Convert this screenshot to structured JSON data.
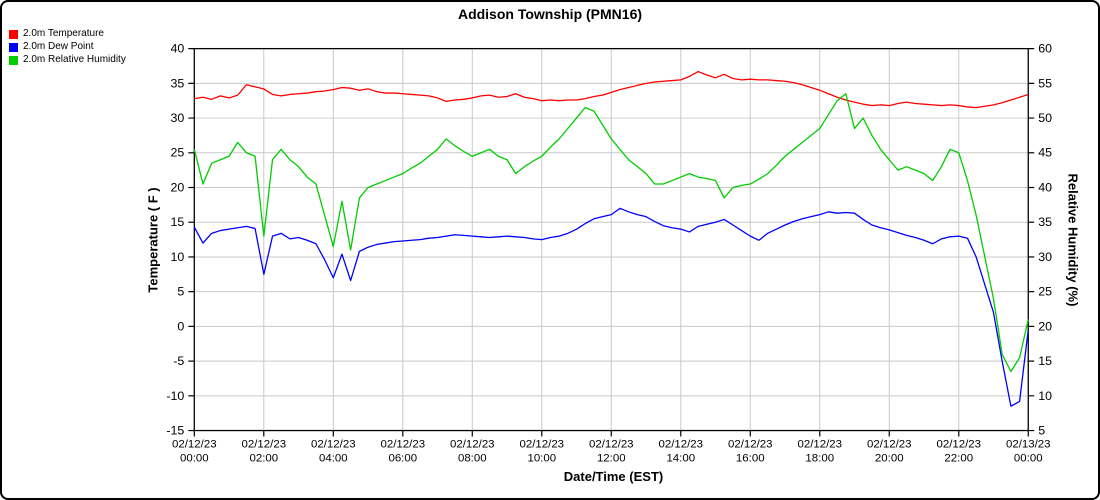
{
  "title": "Addison Township (PMN16)",
  "colors": {
    "grid": "#c9c9c9",
    "axis": "#000000",
    "background": "#ffffff"
  },
  "legend": {
    "items": [
      {
        "label": "2.0m Temperature",
        "color": "#ff0000"
      },
      {
        "label": "2.0m Dew Point",
        "color": "#0000ff"
      },
      {
        "label": "2.0m Relative Humidity",
        "color": "#00cc00"
      }
    ]
  },
  "axes": {
    "left": {
      "label": "Temperature ( F )",
      "ticks": [
        "40",
        "35",
        "30",
        "25",
        "20",
        "15",
        "10",
        "5",
        "0",
        "-5",
        "-10",
        "-15"
      ]
    },
    "right": {
      "label": "Relative Humidity (%)",
      "ticks": [
        "60",
        "55",
        "50",
        "45",
        "40",
        "35",
        "30",
        "25",
        "20",
        "15",
        "10",
        "5"
      ]
    },
    "x": {
      "label": "Date/Time (EST)",
      "ticks": [
        {
          "date": "02/12/23",
          "time": "00:00"
        },
        {
          "date": "02/12/23",
          "time": "02:00"
        },
        {
          "date": "02/12/23",
          "time": "04:00"
        },
        {
          "date": "02/12/23",
          "time": "06:00"
        },
        {
          "date": "02/12/23",
          "time": "08:00"
        },
        {
          "date": "02/12/23",
          "time": "10:00"
        },
        {
          "date": "02/12/23",
          "time": "12:00"
        },
        {
          "date": "02/12/23",
          "time": "14:00"
        },
        {
          "date": "02/12/23",
          "time": "16:00"
        },
        {
          "date": "02/12/23",
          "time": "18:00"
        },
        {
          "date": "02/12/23",
          "time": "20:00"
        },
        {
          "date": "02/12/23",
          "time": "22:00"
        },
        {
          "date": "02/13/23",
          "time": "00:00"
        }
      ]
    }
  },
  "chart_data": {
    "type": "line",
    "title": "Addison Township (PMN16)",
    "xlabel": "Date/Time (EST)",
    "ylabel_left": "Temperature ( F )",
    "ylabel_right": "Relative Humidity (%)",
    "ylim_left": [
      -15,
      40
    ],
    "ylim_right": [
      5,
      60
    ],
    "grid": true,
    "legend_position": "top-left",
    "x": {
      "start_hour": 0,
      "step_hours": 0.25,
      "count": 97,
      "start_label": "02/12/23 00:00 EST",
      "end_label": "02/13/23 00:00 EST"
    },
    "series": [
      {
        "key": "temperature",
        "name": "2.0m Temperature",
        "axis": "left",
        "unit": "F",
        "color": "#ff0000",
        "values": [
          32.8,
          33.0,
          32.7,
          33.2,
          32.9,
          33.3,
          34.8,
          34.5,
          34.2,
          33.4,
          33.2,
          33.4,
          33.5,
          33.6,
          33.8,
          33.9,
          34.1,
          34.4,
          34.3,
          34.0,
          34.2,
          33.8,
          33.6,
          33.6,
          33.5,
          33.4,
          33.3,
          33.2,
          32.9,
          32.4,
          32.6,
          32.7,
          32.9,
          33.2,
          33.3,
          33.0,
          33.1,
          33.5,
          33.0,
          32.8,
          32.5,
          32.6,
          32.5,
          32.6,
          32.6,
          32.8,
          33.1,
          33.3,
          33.7,
          34.1,
          34.4,
          34.7,
          35.0,
          35.2,
          35.3,
          35.4,
          35.5,
          36.0,
          36.7,
          36.2,
          35.8,
          36.3,
          35.7,
          35.5,
          35.6,
          35.5,
          35.5,
          35.4,
          35.3,
          35.1,
          34.8,
          34.4,
          34.0,
          33.5,
          33.0,
          32.6,
          32.3,
          32.0,
          31.8,
          31.9,
          31.8,
          32.1,
          32.3,
          32.1,
          32.0,
          31.9,
          31.8,
          31.9,
          31.8,
          31.6,
          31.5,
          31.7,
          31.9,
          32.2,
          32.6,
          33.0,
          33.4
        ]
      },
      {
        "key": "dew-point",
        "name": "2.0m Dew Point",
        "axis": "left",
        "unit": "F",
        "color": "#0000ff",
        "values": [
          14.3,
          12.0,
          13.4,
          13.8,
          14.0,
          14.2,
          14.4,
          14.1,
          7.5,
          13.0,
          13.4,
          12.6,
          12.8,
          12.4,
          11.9,
          9.6,
          7.0,
          10.4,
          6.6,
          10.8,
          11.4,
          11.8,
          12.0,
          12.2,
          12.3,
          12.4,
          12.5,
          12.7,
          12.8,
          13.0,
          13.2,
          13.1,
          13.0,
          12.9,
          12.8,
          12.9,
          13.0,
          12.9,
          12.8,
          12.6,
          12.5,
          12.8,
          13.0,
          13.4,
          14.0,
          14.8,
          15.5,
          15.8,
          16.1,
          17.0,
          16.5,
          16.1,
          15.8,
          15.1,
          14.5,
          14.2,
          14.0,
          13.6,
          14.4,
          14.7,
          15.0,
          15.4,
          14.6,
          13.8,
          13.0,
          12.4,
          13.4,
          14.0,
          14.6,
          15.1,
          15.5,
          15.8,
          16.1,
          16.5,
          16.3,
          16.4,
          16.3,
          15.4,
          14.6,
          14.2,
          13.9,
          13.5,
          13.1,
          12.8,
          12.4,
          11.9,
          12.6,
          12.9,
          13.0,
          12.7,
          10.0,
          6.0,
          2.0,
          -5.0,
          -11.5,
          -10.8,
          -0.5
        ]
      },
      {
        "key": "relative-humidity",
        "name": "2.0m Relative Humidity",
        "axis": "right",
        "unit": "%",
        "color": "#00cc00",
        "values": [
          45.5,
          40.5,
          43.5,
          44.0,
          44.5,
          46.5,
          45.0,
          44.5,
          33.0,
          44.0,
          45.5,
          44.0,
          43.0,
          41.5,
          40.5,
          36.0,
          31.5,
          38.0,
          31.0,
          38.5,
          40.0,
          40.5,
          41.0,
          41.5,
          42.0,
          42.8,
          43.5,
          44.5,
          45.5,
          47.0,
          46.0,
          45.2,
          44.5,
          45.0,
          45.5,
          44.5,
          44.0,
          42.0,
          43.0,
          43.8,
          44.5,
          45.8,
          47.0,
          48.5,
          50.0,
          51.5,
          51.0,
          49.0,
          47.0,
          45.5,
          44.0,
          43.0,
          42.0,
          40.5,
          40.5,
          41.0,
          41.5,
          42.0,
          41.5,
          41.3,
          41.0,
          38.5,
          40.0,
          40.3,
          40.5,
          41.2,
          42.0,
          43.2,
          44.5,
          45.5,
          46.5,
          47.5,
          48.5,
          50.5,
          52.5,
          53.5,
          48.5,
          50.0,
          47.5,
          45.5,
          44.0,
          42.5,
          43.0,
          42.5,
          42.0,
          41.0,
          43.0,
          45.5,
          45.0,
          41.0,
          36.0,
          30.0,
          24.0,
          16.0,
          13.5,
          15.5,
          21.0
        ]
      }
    ]
  }
}
